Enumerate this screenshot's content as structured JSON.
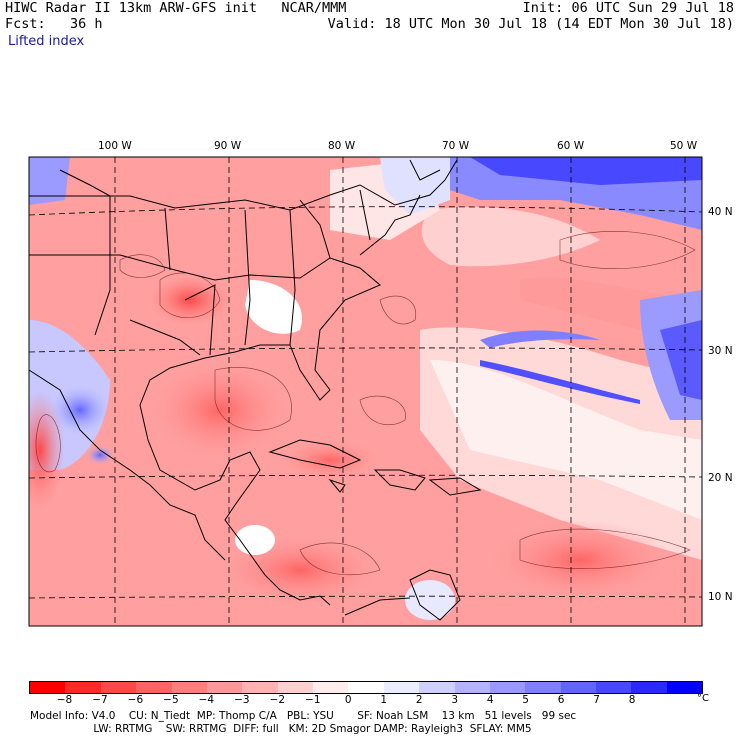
{
  "header": {
    "line1_left": "HIWC Radar II 13km ARW-GFS init   NCAR/MMM",
    "line2_left": "Fcst:   36 h",
    "line1_right": "Init: 06 UTC Sun 29 Jul 18",
    "line2_right": "Valid: 18 UTC Mon 30 Jul 18 (14 EDT Mon 30 Jul 18)",
    "field": "Lifted index"
  },
  "map": {
    "longitude_labels": [
      "100 W",
      "90 W",
      "80 W",
      "70 W",
      "60 W",
      "50 W"
    ],
    "latitude_labels": [
      "40 N",
      "30 N",
      "20 N",
      "10 N"
    ]
  },
  "colorbar": {
    "colors": [
      "#ff0000",
      "#ff2a2a",
      "#ff4848",
      "#ff6464",
      "#ff7f7f",
      "#ff9999",
      "#ffb3b3",
      "#ffd0d0",
      "#ffecec",
      "#ffffff",
      "#ececff",
      "#d0d0ff",
      "#b3b3ff",
      "#9999ff",
      "#7f7fff",
      "#6464ff",
      "#4848ff",
      "#2a2aff",
      "#0000ff"
    ],
    "labels": [
      "−8",
      "−7",
      "−6",
      "−5",
      "−4",
      "−3",
      "−2",
      "−1",
      "0",
      "1",
      "2",
      "3",
      "4",
      "5",
      "6",
      "7",
      "8"
    ],
    "unit": "°C"
  },
  "footer": {
    "line1": "Model Info: V4.0    CU: N_Tiedt  MP: Thomp C/A   PBL: YSU       SF: Noah LSM    13 km   51 levels   99 sec",
    "line2": "                   LW: RRTMG    SW: RRTMG  DIFF: full   KM: 2D Smagor DAMP: Rayleigh3  SFLAY: MM5"
  }
}
